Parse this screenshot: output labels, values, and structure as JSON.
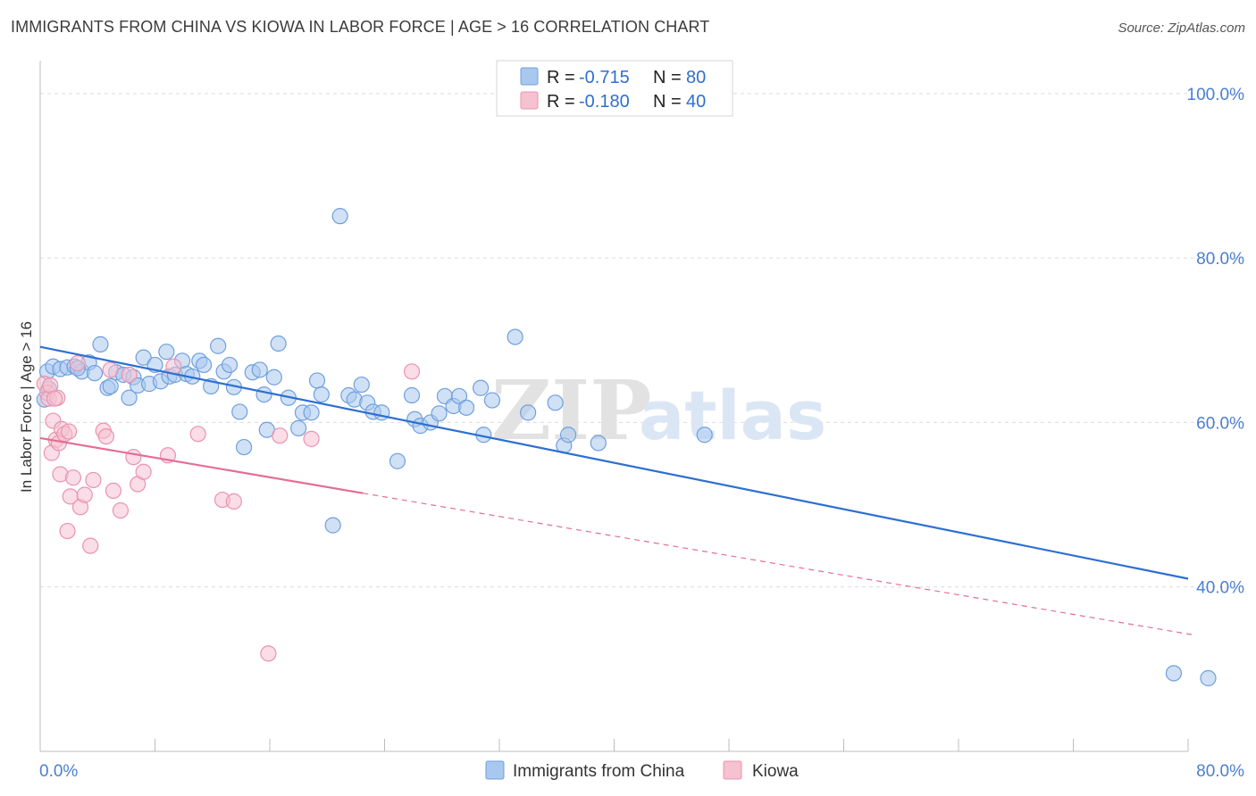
{
  "header": {
    "title": "IMMIGRANTS FROM CHINA VS KIOWA IN LABOR FORCE | AGE > 16 CORRELATION CHART",
    "source": "Source: ZipAtlas.com"
  },
  "legend_top": {
    "items": [
      {
        "r_label": "R =",
        "r_value": "-0.715",
        "n_label": "N =",
        "n_value": "80"
      },
      {
        "r_label": "R =",
        "r_value": "-0.180",
        "n_label": "N =",
        "n_value": "40"
      }
    ]
  },
  "legend_bottom": {
    "items": [
      "Immigrants from China",
      "Kiowa"
    ]
  },
  "watermark": {
    "zip": "ZIP",
    "atlas": "atlas"
  },
  "colors": {
    "china_fill": "#a9c8ef",
    "china_stroke": "#6f9fde",
    "china_line": "#2d6fd1",
    "kiowa_fill": "#f6c1d1",
    "kiowa_stroke": "#ea93ae",
    "kiowa_line": "#e56d95",
    "grid": "#dcdcdc",
    "tick_text": "#4a7fd1"
  },
  "chart_data": {
    "type": "scatter",
    "title": "IMMIGRANTS FROM CHINA VS KIOWA IN LABOR FORCE | AGE > 16 CORRELATION CHART",
    "xlabel": "",
    "ylabel": "In Labor Force | Age > 16",
    "xlim": [
      0,
      80
    ],
    "ylim": [
      20,
      104
    ],
    "x_tick_labels": [
      {
        "value": 0,
        "label": "0.0%"
      },
      {
        "value": 80,
        "label": "80.0%"
      }
    ],
    "y_tick_labels": [
      {
        "value": 100,
        "label": "100.0%"
      },
      {
        "value": 80,
        "label": "80.0%"
      },
      {
        "value": 60,
        "label": "60.0%"
      },
      {
        "value": 40,
        "label": "40.0%"
      }
    ],
    "grid": true,
    "legend_position": "top-center",
    "series": [
      {
        "name": "Immigrants from China",
        "r": -0.715,
        "n": 80,
        "trend": {
          "x": [
            0,
            80
          ],
          "y": [
            69.2,
            41.0
          ],
          "dash_x": null
        },
        "points": [
          [
            0.5,
            66.2
          ],
          [
            0.9,
            66.8
          ],
          [
            1.4,
            66.5
          ],
          [
            1.9,
            66.7
          ],
          [
            2.4,
            66.8
          ],
          [
            2.9,
            66.2
          ],
          [
            3.4,
            67.3
          ],
          [
            3.8,
            66.0
          ],
          [
            4.2,
            69.5
          ],
          [
            4.7,
            64.2
          ],
          [
            4.9,
            64.4
          ],
          [
            5.3,
            66.1
          ],
          [
            5.8,
            65.8
          ],
          [
            6.2,
            63.0
          ],
          [
            6.5,
            65.5
          ],
          [
            6.8,
            64.5
          ],
          [
            7.2,
            67.9
          ],
          [
            7.6,
            64.7
          ],
          [
            8.0,
            67.0
          ],
          [
            8.4,
            65.0
          ],
          [
            8.8,
            68.6
          ],
          [
            9.0,
            65.6
          ],
          [
            9.4,
            65.8
          ],
          [
            9.9,
            67.5
          ],
          [
            10.2,
            65.9
          ],
          [
            10.6,
            65.6
          ],
          [
            11.1,
            67.5
          ],
          [
            11.4,
            67.0
          ],
          [
            11.9,
            64.4
          ],
          [
            12.4,
            69.3
          ],
          [
            12.8,
            66.2
          ],
          [
            13.2,
            67.0
          ],
          [
            13.5,
            64.3
          ],
          [
            13.9,
            61.3
          ],
          [
            14.2,
            57.0
          ],
          [
            14.8,
            66.1
          ],
          [
            15.3,
            66.4
          ],
          [
            15.6,
            63.4
          ],
          [
            15.8,
            59.1
          ],
          [
            16.3,
            65.5
          ],
          [
            16.6,
            69.6
          ],
          [
            17.3,
            63.0
          ],
          [
            18.0,
            59.3
          ],
          [
            18.3,
            61.2
          ],
          [
            18.9,
            61.2
          ],
          [
            19.3,
            65.1
          ],
          [
            19.6,
            63.4
          ],
          [
            20.4,
            47.5
          ],
          [
            20.9,
            85.1
          ],
          [
            21.5,
            63.3
          ],
          [
            21.9,
            62.8
          ],
          [
            22.4,
            64.6
          ],
          [
            22.8,
            62.4
          ],
          [
            23.2,
            61.3
          ],
          [
            23.8,
            61.2
          ],
          [
            24.9,
            55.3
          ],
          [
            25.9,
            63.3
          ],
          [
            26.1,
            60.4
          ],
          [
            26.5,
            59.6
          ],
          [
            27.2,
            60.0
          ],
          [
            27.8,
            61.1
          ],
          [
            28.2,
            63.2
          ],
          [
            28.8,
            62.0
          ],
          [
            29.2,
            63.2
          ],
          [
            29.7,
            61.8
          ],
          [
            30.7,
            64.2
          ],
          [
            30.9,
            58.5
          ],
          [
            31.5,
            62.7
          ],
          [
            33.1,
            70.4
          ],
          [
            34.0,
            61.2
          ],
          [
            35.9,
            62.4
          ],
          [
            36.5,
            57.2
          ],
          [
            36.8,
            58.5
          ],
          [
            38.9,
            57.5
          ],
          [
            46.3,
            58.5
          ],
          [
            79.0,
            29.5
          ],
          [
            81.4,
            28.9
          ],
          [
            0.3,
            62.8
          ],
          [
            0.6,
            64.1
          ],
          [
            2.6,
            66.6
          ]
        ]
      },
      {
        "name": "Kiowa",
        "r": -0.18,
        "n": 40,
        "trend": {
          "x": [
            0,
            22.5
          ],
          "y": [
            58.1,
            51.4
          ],
          "dash_x": [
            22.5,
            80.5
          ]
        },
        "points": [
          [
            0.3,
            64.7
          ],
          [
            0.5,
            63.6
          ],
          [
            0.6,
            62.9
          ],
          [
            0.8,
            56.3
          ],
          [
            0.9,
            60.2
          ],
          [
            1.1,
            57.9
          ],
          [
            1.2,
            63.0
          ],
          [
            1.3,
            57.5
          ],
          [
            1.4,
            53.7
          ],
          [
            1.5,
            59.2
          ],
          [
            1.7,
            58.6
          ],
          [
            1.9,
            46.8
          ],
          [
            2.0,
            58.9
          ],
          [
            2.1,
            51.0
          ],
          [
            2.3,
            53.3
          ],
          [
            2.6,
            67.2
          ],
          [
            2.8,
            49.7
          ],
          [
            3.1,
            51.2
          ],
          [
            3.5,
            45.0
          ],
          [
            3.7,
            53.0
          ],
          [
            4.4,
            59.0
          ],
          [
            4.6,
            58.3
          ],
          [
            4.9,
            66.4
          ],
          [
            5.1,
            51.7
          ],
          [
            5.6,
            49.3
          ],
          [
            6.2,
            65.8
          ],
          [
            6.5,
            55.8
          ],
          [
            6.8,
            52.5
          ],
          [
            7.2,
            54.0
          ],
          [
            8.9,
            56.0
          ],
          [
            9.3,
            66.8
          ],
          [
            11.0,
            58.6
          ],
          [
            12.7,
            50.6
          ],
          [
            13.5,
            50.4
          ],
          [
            15.9,
            31.9
          ],
          [
            16.7,
            58.4
          ],
          [
            18.9,
            58.0
          ],
          [
            25.9,
            66.2
          ],
          [
            0.7,
            64.5
          ],
          [
            1.0,
            62.9
          ]
        ]
      }
    ]
  }
}
